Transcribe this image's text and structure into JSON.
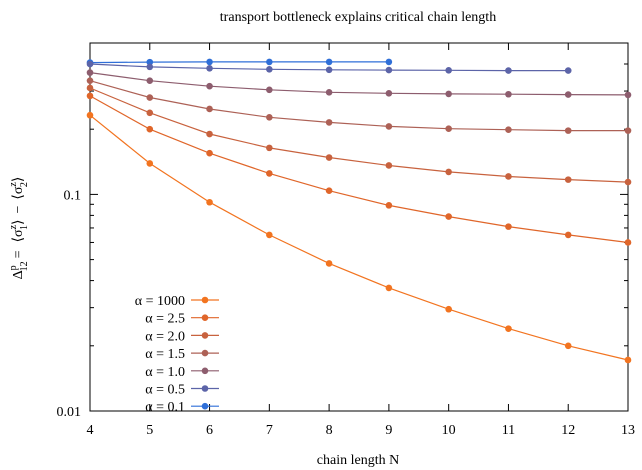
{
  "chart_data": {
    "type": "line",
    "title": "transport bottleneck explains critical chain length",
    "xlabel": "chain length N",
    "ylabel": "Δ₁₂ᴾ = ⟨σ₁ᶻ⟩ − ⟨σ₂ᶻ⟩",
    "ylabel_parts": {
      "lhs_base": "Δ",
      "lhs_sup": "p",
      "lhs_sub": "12",
      "eq": "=",
      "term1_base": "⟨σ",
      "term1_sup": "z",
      "term1_sub": "1",
      "term1_close": "⟩",
      "minus": "−",
      "term2_base": "⟨σ",
      "term2_sup": "z",
      "term2_sub": "2",
      "term2_close": "⟩"
    },
    "xlim": [
      4,
      13
    ],
    "ylim": [
      0.01,
      0.5
    ],
    "y_scale": "log",
    "x_ticks": [
      "4",
      "5",
      "6",
      "7",
      "8",
      "9",
      "10",
      "11",
      "12",
      "13"
    ],
    "y_ticks": [
      {
        "value": 0.01,
        "label": "0.01"
      },
      {
        "value": 0.1,
        "label": "0.1"
      }
    ],
    "grid": false,
    "legend_position": "bottom-left",
    "series": [
      {
        "name": "α = 1000",
        "color": "#f27420",
        "x": [
          4,
          5,
          6,
          7,
          8,
          9,
          10,
          11,
          12,
          13
        ],
        "y": [
          0.232,
          0.139,
          0.092,
          0.065,
          0.048,
          0.037,
          0.0295,
          0.024,
          0.02,
          0.0172
        ]
      },
      {
        "name": "α = 2.5",
        "color": "#e0662a",
        "x": [
          4,
          5,
          6,
          7,
          8,
          9,
          10,
          11,
          12,
          13
        ],
        "y": [
          0.285,
          0.2,
          0.155,
          0.125,
          0.104,
          0.089,
          0.079,
          0.071,
          0.065,
          0.06
        ]
      },
      {
        "name": "α = 2.0",
        "color": "#c8623e",
        "x": [
          4,
          5,
          6,
          7,
          8,
          9,
          10,
          11,
          12,
          13
        ],
        "y": [
          0.31,
          0.238,
          0.19,
          0.164,
          0.148,
          0.136,
          0.127,
          0.121,
          0.117,
          0.114
        ]
      },
      {
        "name": "α = 1.5",
        "color": "#ad6156",
        "x": [
          4,
          5,
          6,
          7,
          8,
          9,
          10,
          11,
          12,
          13
        ],
        "y": [
          0.335,
          0.28,
          0.248,
          0.227,
          0.215,
          0.206,
          0.201,
          0.199,
          0.197,
          0.197
        ]
      },
      {
        "name": "α = 1.0",
        "color": "#8d5d6e",
        "x": [
          4,
          5,
          6,
          7,
          8,
          9,
          10,
          11,
          12,
          13
        ],
        "y": [
          0.365,
          0.335,
          0.316,
          0.304,
          0.296,
          0.293,
          0.291,
          0.29,
          0.289,
          0.288
        ]
      },
      {
        "name": "α = 0.5",
        "color": "#5c64a8",
        "x": [
          4,
          5,
          6,
          7,
          8,
          9,
          10,
          11,
          12
        ],
        "y": [
          0.4,
          0.388,
          0.382,
          0.378,
          0.376,
          0.375,
          0.374,
          0.373,
          0.373
        ]
      },
      {
        "name": "α = 0.1",
        "color": "#2f6fd8",
        "x": [
          4,
          5,
          6,
          7,
          8,
          9
        ],
        "y": [
          0.406,
          0.408,
          0.409,
          0.409,
          0.409,
          0.409
        ]
      }
    ]
  }
}
